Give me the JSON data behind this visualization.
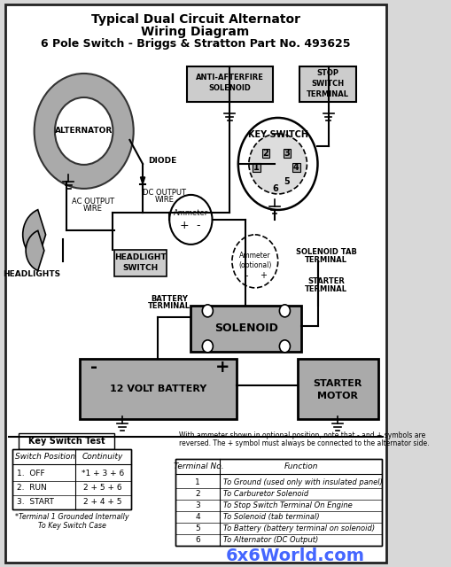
{
  "title_line1": "Typical Dual Circuit Alternator",
  "title_line2": "Wiring Diagram",
  "title_line3": "6 Pole Switch - Briggs & Stratton Part No. 493625",
  "bg_color": "#d8d8d8",
  "border_color": "#222222",
  "table1_title": "Key Switch Test",
  "table1_headers": [
    "Switch Position",
    "Continuity"
  ],
  "table1_rows": [
    [
      "1.  OFF",
      "*1 + 3 + 6"
    ],
    [
      "2.  RUN",
      "2 + 5 + 6"
    ],
    [
      "3.  START",
      "2 + 4 + 5"
    ]
  ],
  "table1_footnote": "*Terminal 1 Grounded Internally\nTo Key Switch Case",
  "table2_note": "With ammeter shown in optional position, note that - and + symbols are\nreversed. The + symbol must always be connected to the alternator side.",
  "table2_headers": [
    "Terminal No.",
    "Function"
  ],
  "table2_rows": [
    [
      "1",
      "To Ground (used only with insulated panel)"
    ],
    [
      "2",
      "To Carburetor Solenoid"
    ],
    [
      "3",
      "To Stop Switch Terminal On Engine"
    ],
    [
      "4",
      "To Solenoid (tab terminal)"
    ],
    [
      "5",
      "To Battery (battery terminal on solenoid)"
    ],
    [
      "6",
      "To Alternator (DC Output)"
    ]
  ],
  "watermark": "6x6World.com",
  "watermark_color": "#4466ff"
}
